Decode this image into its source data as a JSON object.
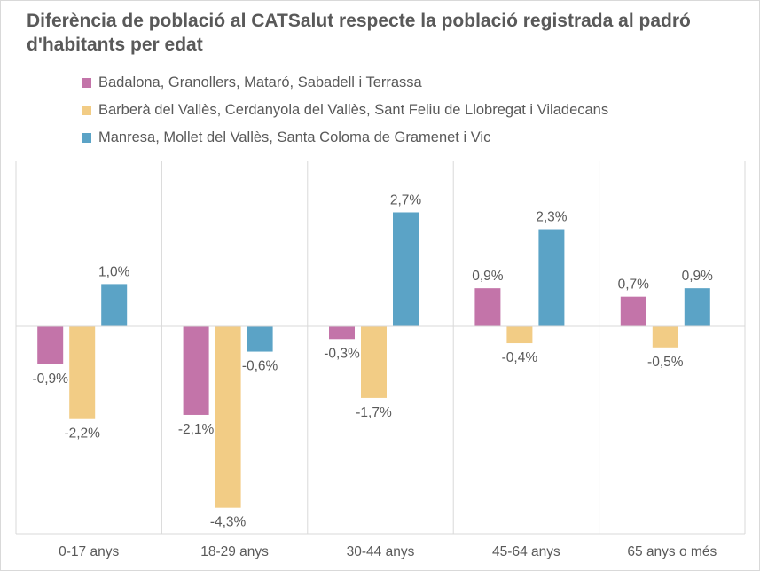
{
  "chart_data": {
    "type": "bar",
    "title": "Diferència de població al CATSalut respecte la població registrada al padró d'habitants per edat",
    "categories": [
      "0-17 anys",
      "18-29 anys",
      "30-44 anys",
      "45-64 anys",
      "65 anys o més"
    ],
    "series": [
      {
        "name": "Badalona, Granollers, Mataró, Sabadell i Terrassa",
        "color": "#c374a9",
        "values": [
          -0.9,
          -2.1,
          -0.3,
          0.9,
          0.7
        ],
        "labels": [
          "-0,9%",
          "-2,1%",
          "-0,3%",
          "0,9%",
          "0,7%"
        ]
      },
      {
        "name": "Barberà del Vallès, Cerdanyola del Vallès, Sant Feliu de Llobregat i Viladecans",
        "color": "#f2cc85",
        "values": [
          -2.2,
          -4.3,
          -1.7,
          -0.4,
          -0.5
        ],
        "labels": [
          "-2,2%",
          "-4,3%",
          "-1,7%",
          "-0,4%",
          "-0,5%"
        ]
      },
      {
        "name": "Manresa, Mollet del Vallès, Santa Coloma de Gramenet i Vic",
        "color": "#5ba3c6",
        "values": [
          1.0,
          -0.6,
          2.7,
          2.3,
          0.9
        ],
        "labels": [
          "1,0%",
          "-0,6%",
          "2,7%",
          "2,3%",
          "0,9%"
        ]
      }
    ],
    "ylim": [
      -4.8,
      4.0
    ],
    "legend_position": "top-left",
    "grid": "vertical category separators",
    "axis_color": "#d9d9d9"
  }
}
